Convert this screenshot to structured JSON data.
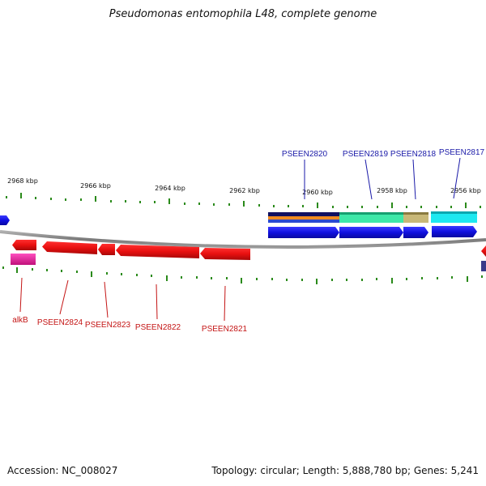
{
  "title": "Pseudomonas entomophila L48, complete genome",
  "accession": "Accession: NC_008027",
  "summary": "Topology: circular; Length: 5,888,780 bp; Genes: 5,241",
  "ruler_labels": [
    "2968 kbp",
    "2966 kbp",
    "2964 kbp",
    "2962 kbp",
    "2960 kbp",
    "2958 kbp",
    "2956 kbp"
  ],
  "genes_top": [
    "PSEEN2820",
    "PSEEN2819",
    "PSEEN2818",
    "PSEEN2817"
  ],
  "genes_bottom": [
    "alkB",
    "PSEEN2824",
    "PSEEN2823",
    "PSEEN2822",
    "PSEEN2821"
  ],
  "colors": {
    "plus_strand": "#1414e6",
    "minus_strand": "#e60f0f",
    "tick": "#2a8a1a",
    "backbone": "#8a8a8a",
    "top_label": "#1a1aa8",
    "bottom_label": "#c41414"
  }
}
